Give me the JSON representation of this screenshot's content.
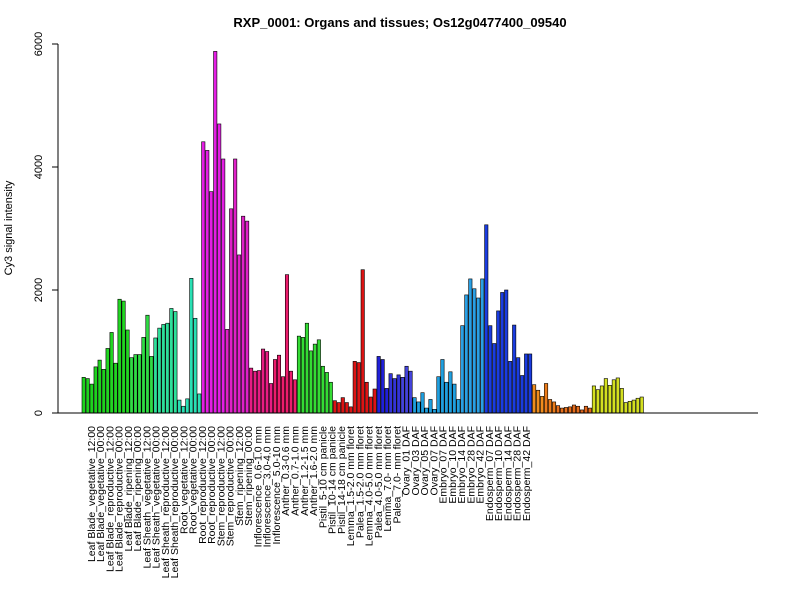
{
  "chart_data": {
    "type": "bar",
    "title": "RXP_0001: Organs and tissues; Os12g0477400_09540",
    "xlabel": "",
    "ylabel": "Cy3 signal intensity",
    "ylim": [
      0,
      6000
    ],
    "yticks": [
      0,
      2000,
      4000,
      6000
    ],
    "grid": false,
    "legend": "none",
    "tick_labels": [
      "Leaf Blade_vegetative_12:00",
      "Leaf Blade_vegetative_00:00",
      "Leaf Blade_reproductive_12:00",
      "Leaf Blade_reproductive_00:00",
      "Leaf Blade_ripening_12:00",
      "Leaf Blade_ripening_00:00",
      "Leaf Sheath_vegetative_12:00",
      "Leaf Sheath_vegetative_00:00",
      "Leaf Sheath_reproductive_12:00",
      "Leaf Sheath_reproductive_00:00",
      "Root_vegetative_12:00",
      "Root_vegetative_00:00",
      "Root_reproductive_12:00",
      "Root_reproductive_00:00",
      "Stem_reproductive_12:00",
      "Stem_reproductive_00:00",
      "Stem_ripening_12:00",
      "Stem_ripening_00:00",
      "Inflorescence_0.6-1.0 mm",
      "Inflorescence_3.0-4.0 mm",
      "Inflorescence_5.0-10 mm",
      "Anther_0.3-0.6 mm",
      "Anther_0.7-1.0 mm",
      "Anther_1.2-1.5 mm",
      "Anther_1.6-2.0 mm",
      "Pistil_5-10 cm panicle",
      "Pistil_10-14 cm panicle",
      "Pistil_14-18 cm panicle",
      "Lemma_1.5-2.0 mm floret",
      "Palea_1.5-2.0 mm floret",
      "Lemma_4.0-5.0 mm floret",
      "Palea_4.0-5.0 mm floret",
      "Lemma_7.0- mm floret",
      "Palea_7.0- mm floret",
      "Ovary_01 DAF",
      "Ovary_03 DAF",
      "Ovary_05 DAF",
      "Ovary_07 DAF",
      "Embryo_07 DAF",
      "Embryo_10 DAF",
      "Embryo_14 DAF",
      "Embryo_28 DAF",
      "Embryo_42 DAF",
      "Endosperm_07 DAF",
      "Endosperm_10 DAF",
      "Endosperm_14 DAF",
      "Endosperm_28 DAF",
      "Endosperm_42 DAF"
    ],
    "bars": [
      {
        "v": 580,
        "c": "#1ed21e"
      },
      {
        "v": 560,
        "c": "#1ed21e"
      },
      {
        "v": 470,
        "c": "#1ed21e"
      },
      {
        "v": 750,
        "c": "#1ed21e"
      },
      {
        "v": 860,
        "c": "#1ed21e"
      },
      {
        "v": 710,
        "c": "#1ed21e"
      },
      {
        "v": 1050,
        "c": "#22d622"
      },
      {
        "v": 1310,
        "c": "#22d622"
      },
      {
        "v": 810,
        "c": "#22d622"
      },
      {
        "v": 1850,
        "c": "#22d622"
      },
      {
        "v": 1820,
        "c": "#22d622"
      },
      {
        "v": 1350,
        "c": "#22d622"
      },
      {
        "v": 900,
        "c": "#30dc44"
      },
      {
        "v": 950,
        "c": "#30dc44"
      },
      {
        "v": 950,
        "c": "#30dc44"
      },
      {
        "v": 1230,
        "c": "#30dc44"
      },
      {
        "v": 1590,
        "c": "#30dc44"
      },
      {
        "v": 920,
        "c": "#30dc44"
      },
      {
        "v": 1220,
        "c": "#2ee09a"
      },
      {
        "v": 1380,
        "c": "#2ee09a"
      },
      {
        "v": 1440,
        "c": "#2ee09a"
      },
      {
        "v": 1460,
        "c": "#2ee09a"
      },
      {
        "v": 1700,
        "c": "#2ee09a"
      },
      {
        "v": 1650,
        "c": "#2ee09a"
      },
      {
        "v": 210,
        "c": "#2ae0b4"
      },
      {
        "v": 110,
        "c": "#2ae0b4"
      },
      {
        "v": 230,
        "c": "#2ae0b4"
      },
      {
        "v": 2190,
        "c": "#2ae0b4"
      },
      {
        "v": 1540,
        "c": "#2ae0b4"
      },
      {
        "v": 310,
        "c": "#2ae0b4"
      },
      {
        "v": 4410,
        "c": "#e41ee4"
      },
      {
        "v": 4270,
        "c": "#e41ee4"
      },
      {
        "v": 3600,
        "c": "#e41ee4"
      },
      {
        "v": 5880,
        "c": "#e41ee4"
      },
      {
        "v": 4700,
        "c": "#e41ee4"
      },
      {
        "v": 4130,
        "c": "#e41ee4"
      },
      {
        "v": 1360,
        "c": "#e020c8"
      },
      {
        "v": 3320,
        "c": "#e020c8"
      },
      {
        "v": 4130,
        "c": "#e020c8"
      },
      {
        "v": 2570,
        "c": "#e020c8"
      },
      {
        "v": 3200,
        "c": "#e020c8"
      },
      {
        "v": 3120,
        "c": "#e020c8"
      },
      {
        "v": 730,
        "c": "#e81c84"
      },
      {
        "v": 680,
        "c": "#e81c84"
      },
      {
        "v": 690,
        "c": "#e81c84"
      },
      {
        "v": 1040,
        "c": "#e81c84"
      },
      {
        "v": 1000,
        "c": "#e81c84"
      },
      {
        "v": 480,
        "c": "#e81c84"
      },
      {
        "v": 870,
        "c": "#ec1c6c"
      },
      {
        "v": 940,
        "c": "#ec1c6c"
      },
      {
        "v": 590,
        "c": "#ec1c6c"
      },
      {
        "v": 2250,
        "c": "#ec1c6c"
      },
      {
        "v": 680,
        "c": "#ec1c6c"
      },
      {
        "v": 540,
        "c": "#ec1c6c"
      },
      {
        "v": 1250,
        "c": "#34dc34"
      },
      {
        "v": 1230,
        "c": "#34dc34"
      },
      {
        "v": 1460,
        "c": "#34dc34"
      },
      {
        "v": 1010,
        "c": "#34dc34"
      },
      {
        "v": 1120,
        "c": "#34dc34"
      },
      {
        "v": 1190,
        "c": "#34dc34"
      },
      {
        "v": 760,
        "c": "#34dc34"
      },
      {
        "v": 660,
        "c": "#34dc34"
      },
      {
        "v": 500,
        "c": "#34dc34"
      },
      {
        "v": 200,
        "c": "#dc1414"
      },
      {
        "v": 170,
        "c": "#dc1414"
      },
      {
        "v": 250,
        "c": "#dc1414"
      },
      {
        "v": 170,
        "c": "#dc1414"
      },
      {
        "v": 100,
        "c": "#dc1414"
      },
      {
        "v": 840,
        "c": "#dc1414"
      },
      {
        "v": 820,
        "c": "#dc1414"
      },
      {
        "v": 2330,
        "c": "#dc1414"
      },
      {
        "v": 500,
        "c": "#dc1414"
      },
      {
        "v": 260,
        "c": "#dc1414"
      },
      {
        "v": 390,
        "c": "#dc1414"
      },
      {
        "v": 920,
        "c": "#2020d8"
      },
      {
        "v": 870,
        "c": "#2020d8"
      },
      {
        "v": 400,
        "c": "#2020d8"
      },
      {
        "v": 640,
        "c": "#3434d8"
      },
      {
        "v": 560,
        "c": "#3434d8"
      },
      {
        "v": 620,
        "c": "#3434d8"
      },
      {
        "v": 580,
        "c": "#4444dc"
      },
      {
        "v": 760,
        "c": "#4444dc"
      },
      {
        "v": 680,
        "c": "#4444dc"
      },
      {
        "v": 250,
        "c": "#1ea0e0"
      },
      {
        "v": 180,
        "c": "#1ea0e0"
      },
      {
        "v": 330,
        "c": "#1ea0e0"
      },
      {
        "v": 80,
        "c": "#1ea0e0"
      },
      {
        "v": 220,
        "c": "#1ea0e0"
      },
      {
        "v": 60,
        "c": "#1ea0e0"
      },
      {
        "v": 590,
        "c": "#20a0e0"
      },
      {
        "v": 870,
        "c": "#20a0e0"
      },
      {
        "v": 500,
        "c": "#20a0e0"
      },
      {
        "v": 670,
        "c": "#20a0e0"
      },
      {
        "v": 470,
        "c": "#20a0e0"
      },
      {
        "v": 220,
        "c": "#20a0e0"
      },
      {
        "v": 1420,
        "c": "#2aa0e4"
      },
      {
        "v": 1920,
        "c": "#2aa0e4"
      },
      {
        "v": 2180,
        "c": "#2aa0e4"
      },
      {
        "v": 2020,
        "c": "#2aa0e4"
      },
      {
        "v": 1870,
        "c": "#2aa0e4"
      },
      {
        "v": 2180,
        "c": "#2aa0e4"
      },
      {
        "v": 3060,
        "c": "#1a3ce0"
      },
      {
        "v": 1420,
        "c": "#1a3ce0"
      },
      {
        "v": 1130,
        "c": "#1a3ce0"
      },
      {
        "v": 1660,
        "c": "#1a3ce0"
      },
      {
        "v": 1960,
        "c": "#1a3ce0"
      },
      {
        "v": 2000,
        "c": "#1a3ce0"
      },
      {
        "v": 840,
        "c": "#1a3ce0"
      },
      {
        "v": 1430,
        "c": "#1a3ce0"
      },
      {
        "v": 900,
        "c": "#1a3ce0"
      },
      {
        "v": 610,
        "c": "#1a3ce0"
      },
      {
        "v": 960,
        "c": "#1a3ce0"
      },
      {
        "v": 960,
        "c": "#1a3ce0"
      },
      {
        "v": 460,
        "c": "#f08c1c"
      },
      {
        "v": 370,
        "c": "#f08c1c"
      },
      {
        "v": 270,
        "c": "#f08c1c"
      },
      {
        "v": 480,
        "c": "#ec7c1a"
      },
      {
        "v": 220,
        "c": "#ec7c1a"
      },
      {
        "v": 180,
        "c": "#ec7c1a"
      },
      {
        "v": 120,
        "c": "#e8701c"
      },
      {
        "v": 80,
        "c": "#e8701c"
      },
      {
        "v": 90,
        "c": "#e8701c"
      },
      {
        "v": 100,
        "c": "#e66c1c"
      },
      {
        "v": 130,
        "c": "#e66c1c"
      },
      {
        "v": 110,
        "c": "#e66c1c"
      },
      {
        "v": 50,
        "c": "#e4681c"
      },
      {
        "v": 110,
        "c": "#e4681c"
      },
      {
        "v": 80,
        "c": "#e4681c"
      },
      {
        "v": 440,
        "c": "#d4e020"
      },
      {
        "v": 380,
        "c": "#d4e020"
      },
      {
        "v": 440,
        "c": "#d4e020"
      },
      {
        "v": 560,
        "c": "#d4e020"
      },
      {
        "v": 450,
        "c": "#d4e020"
      },
      {
        "v": 540,
        "c": "#d4e020"
      },
      {
        "v": 570,
        "c": "#d4e020"
      },
      {
        "v": 400,
        "c": "#d4e020"
      },
      {
        "v": 170,
        "c": "#d4e020"
      },
      {
        "v": 190,
        "c": "#d4e020"
      },
      {
        "v": 210,
        "c": "#d4e020"
      },
      {
        "v": 240,
        "c": "#d4e020"
      },
      {
        "v": 260,
        "c": "#d4e020"
      }
    ]
  }
}
